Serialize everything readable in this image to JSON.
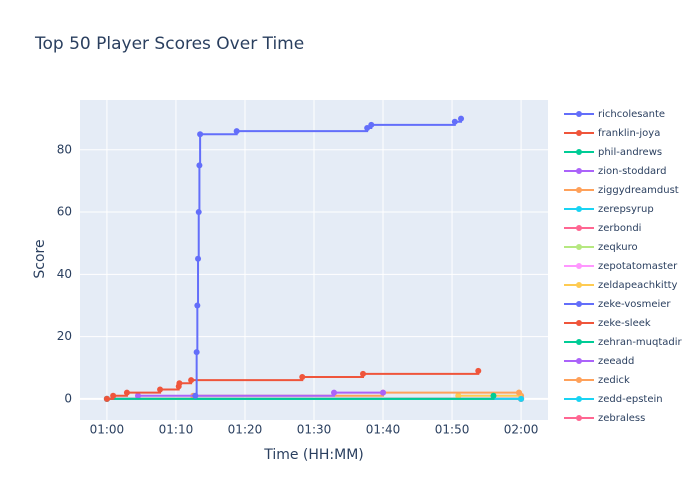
{
  "chart_data": {
    "type": "line",
    "line_shape": "hv",
    "title": "Top 50 Player Scores Over Time",
    "x_label": "Time (HH:MM)",
    "y_label": "Score",
    "xlim": [
      56.1,
      123.9
    ],
    "ylim": [
      -6.8,
      96
    ],
    "xticks": [
      {
        "value": 60,
        "label": "01:00"
      },
      {
        "value": 70,
        "label": "01:10"
      },
      {
        "value": 80,
        "label": "01:20"
      },
      {
        "value": 90,
        "label": "01:30"
      },
      {
        "value": 100,
        "label": "01:40"
      },
      {
        "value": 110,
        "label": "01:50"
      },
      {
        "value": 120,
        "label": "02:00"
      }
    ],
    "yticks": [
      0,
      20,
      40,
      60,
      80
    ],
    "grid": true,
    "series": [
      {
        "name": "richcolesante",
        "color": "#636efa",
        "x": [
          72.8,
          73.0,
          73.1,
          73.2,
          73.3,
          73.4,
          73.5,
          78.8,
          97.7,
          98.3,
          110.4,
          111.3
        ],
        "values": [
          1,
          15,
          30,
          45,
          60,
          75,
          85,
          86,
          87,
          88,
          89,
          90
        ]
      },
      {
        "name": "franklin-joya",
        "color": "#EF553B",
        "x": [
          60,
          60.9,
          62.9,
          67.7,
          70.4,
          70.5,
          72.2,
          88.3,
          97.1,
          113.8
        ],
        "values": [
          0,
          1,
          2,
          3,
          4,
          5,
          6,
          7,
          8,
          9
        ]
      },
      {
        "name": "phil-andrews",
        "color": "#00cc96",
        "x": [
          60,
          116
        ],
        "values": [
          0,
          1
        ]
      },
      {
        "name": "zion-stoddard",
        "color": "#ab63fa",
        "x": [
          60,
          64.5,
          92.9,
          100
        ],
        "values": [
          0,
          1,
          2,
          2
        ]
      },
      {
        "name": "ziggydreamdust",
        "color": "#FFA15A",
        "x": [
          60,
          72.5,
          100,
          119.7
        ],
        "values": [
          0,
          1,
          2,
          2
        ]
      },
      {
        "name": "zerepsyrup",
        "color": "#19d3f3",
        "x": [
          60,
          120
        ],
        "values": [
          0,
          0
        ]
      },
      {
        "name": "zerbondi",
        "color": "#FF6692",
        "x": [
          60,
          120
        ],
        "values": [
          0,
          0
        ]
      },
      {
        "name": "zeqkuro",
        "color": "#B6E880",
        "x": [
          60,
          120
        ],
        "values": [
          0,
          0
        ]
      },
      {
        "name": "zepotatomaster",
        "color": "#FF97FF",
        "x": [
          60,
          120
        ],
        "values": [
          0,
          0
        ]
      },
      {
        "name": "zeldapeachkitty",
        "color": "#FECB52",
        "x": [
          60,
          110.9,
          119.7,
          120
        ],
        "values": [
          0,
          1,
          2,
          0
        ]
      },
      {
        "name": "zeke-vosmeier",
        "color": "#636efa",
        "x": [
          60,
          120
        ],
        "values": [
          0,
          0
        ]
      },
      {
        "name": "zeke-sleek",
        "color": "#EF553B",
        "x": [
          60,
          120
        ],
        "values": [
          0,
          0
        ]
      },
      {
        "name": "zehran-muqtadir",
        "color": "#00cc96",
        "x": [
          60,
          120
        ],
        "values": [
          0,
          0
        ]
      },
      {
        "name": "zeeadd",
        "color": "#ab63fa",
        "x": [
          60,
          120
        ],
        "values": [
          0,
          0
        ]
      },
      {
        "name": "zedick",
        "color": "#FFA15A",
        "x": [
          60,
          120
        ],
        "values": [
          0,
          1
        ]
      },
      {
        "name": "zedd-epstein",
        "color": "#19d3f3",
        "x": [
          60,
          120
        ],
        "values": [
          0,
          0
        ]
      },
      {
        "name": "zebraless",
        "color": "#FF6692",
        "x": [
          60,
          120
        ],
        "values": [
          0,
          0
        ]
      }
    ]
  }
}
